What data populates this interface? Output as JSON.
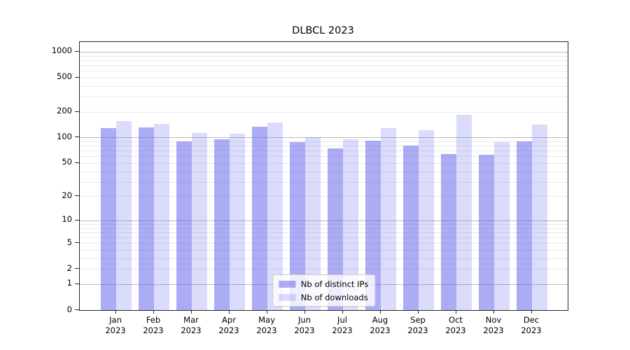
{
  "chart_data": {
    "type": "bar",
    "title": "DLBCL 2023",
    "categories": [
      "Jan 2023",
      "Feb 2023",
      "Mar 2023",
      "Apr 2023",
      "May 2023",
      "Jun 2023",
      "Jul 2023",
      "Aug 2023",
      "Sep 2023",
      "Oct 2023",
      "Nov 2023",
      "Dec 2023"
    ],
    "series": [
      {
        "name": "Nb of distinct IPs",
        "values": [
          128,
          132,
          90,
          95,
          135,
          89,
          75,
          91,
          80,
          64,
          63,
          90
        ]
      },
      {
        "name": "Nb of downloads",
        "values": [
          155,
          145,
          113,
          110,
          150,
          100,
          96,
          128,
          123,
          185,
          88,
          143
        ]
      }
    ],
    "yscale": "log1p",
    "yticks": [
      0,
      1,
      2,
      5,
      10,
      20,
      50,
      100,
      200,
      500,
      1000
    ],
    "ylim": [
      0,
      1200
    ],
    "xlabel": "",
    "ylabel": "",
    "grid": "both",
    "legend_position": "lower center"
  },
  "colors": {
    "series": [
      "rgba(90,90,235,0.5)",
      "rgba(90,90,235,0.22)"
    ],
    "grid_major": "#bcbcbc",
    "grid_minor": "#e9e9e9",
    "axis_frame": "#262626",
    "text": "#000000",
    "legend_border": "#cccccc",
    "legend_bg": "rgba(255,255,255,0.8)"
  }
}
